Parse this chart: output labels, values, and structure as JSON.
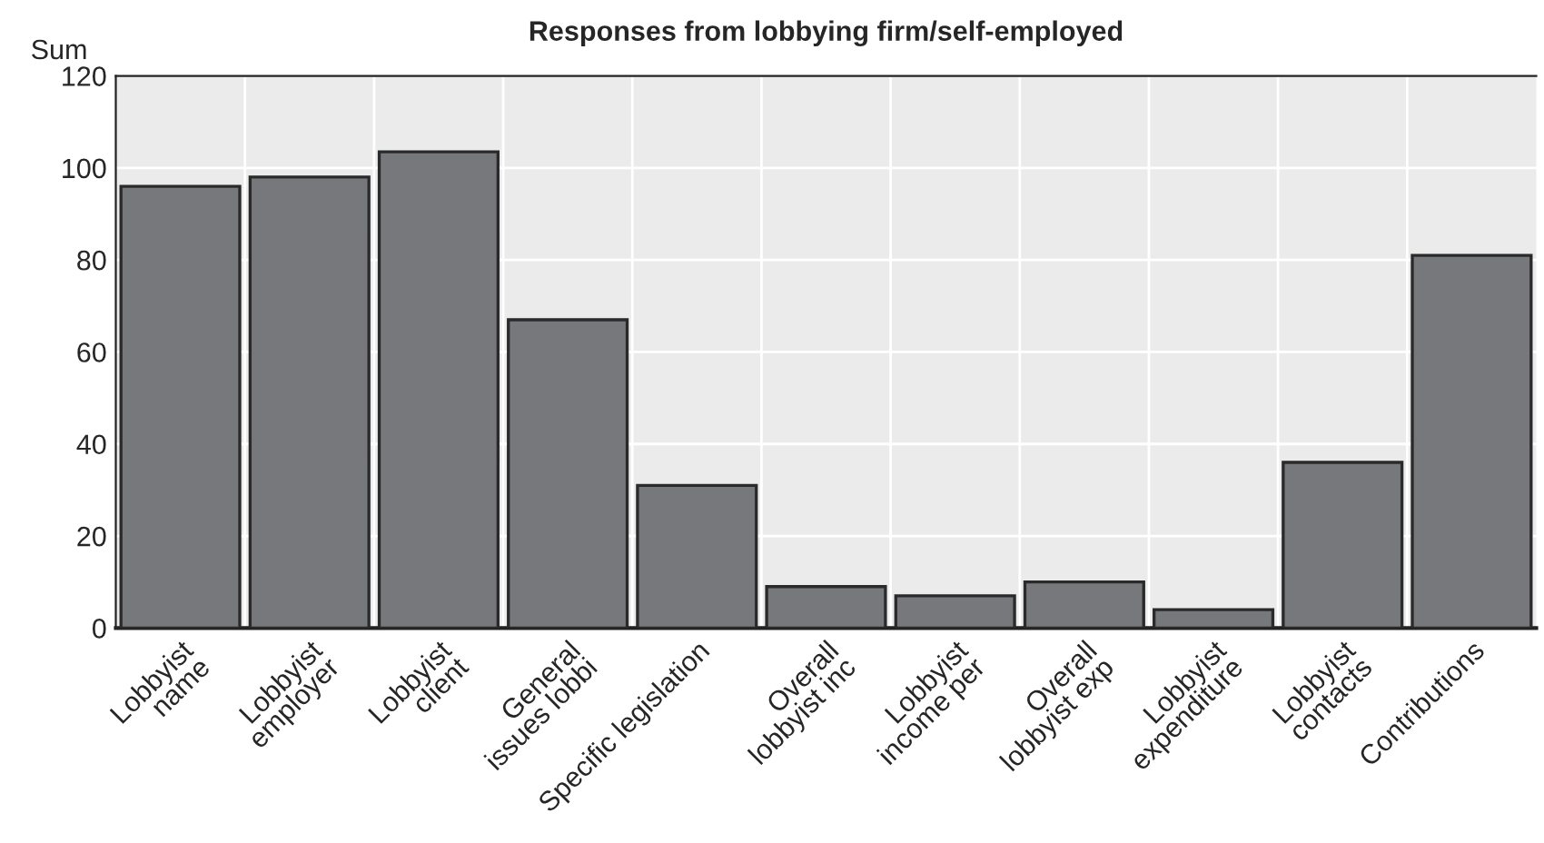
{
  "chart_data": {
    "type": "bar",
    "title": "Responses from lobbying firm/self-employed",
    "ylabel": "Sum",
    "categories": [
      "Lobbyist\nname",
      "Lobbyist\nemployer",
      "Lobbyist\nclient",
      "General\nissues lobbi",
      "Specific legislation",
      "Overall\nlobbyist inc",
      "Lobbyist\nincome per",
      "Overall\nlobbyist exp",
      "Lobbyist\nexpenditure",
      "Lobbyist\ncontacts",
      "Contributions"
    ],
    "values": [
      96,
      98,
      103.5,
      67,
      31,
      9,
      7,
      10,
      4,
      36,
      81
    ],
    "color": "#77787b",
    "ylim": [
      0,
      120
    ],
    "yticks": [
      0,
      20,
      40,
      60,
      80,
      100,
      120
    ],
    "grid": true
  }
}
